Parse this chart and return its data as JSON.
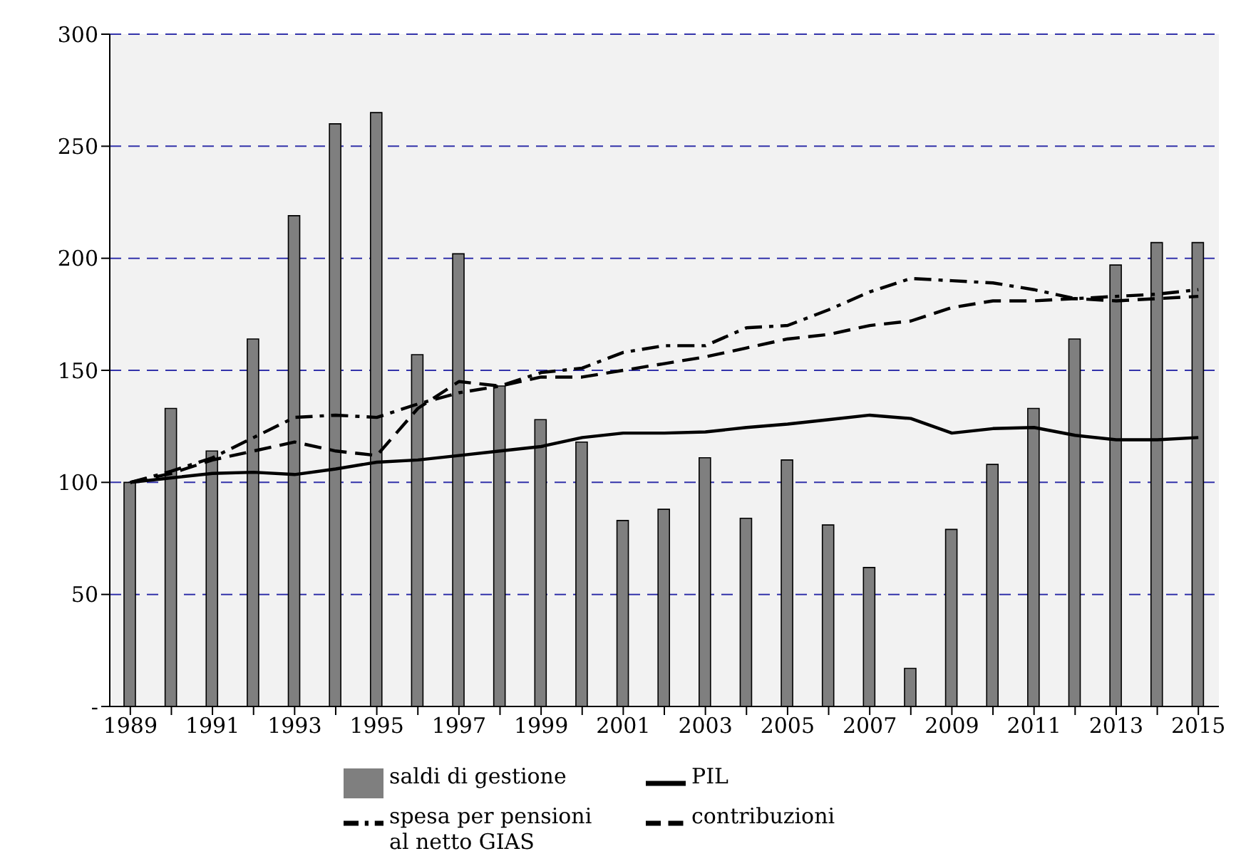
{
  "chart_data": {
    "type": "bar",
    "categories": [
      "1989",
      null,
      "1991",
      null,
      "1993",
      null,
      "1995",
      null,
      "1997",
      null,
      "1999",
      null,
      "2001",
      null,
      "2003",
      null,
      "2005",
      null,
      "2007",
      null,
      "2009",
      null,
      "2011",
      null,
      "2013",
      null,
      "2015"
    ],
    "series": [
      {
        "name": "saldi di gestione",
        "color": "#7f7f7f",
        "values": [
          100,
          133,
          114,
          164,
          219,
          260,
          265,
          157,
          202,
          143,
          128,
          118,
          83,
          88,
          111,
          84,
          110,
          81,
          62,
          17,
          79,
          108,
          133,
          164,
          197,
          207,
          207
        ]
      },
      {
        "name": "PIL",
        "type": "line",
        "color": "#000000",
        "line_style": "solid",
        "values": [
          100,
          102,
          104,
          104.5,
          103.5,
          106,
          109,
          110,
          112,
          114,
          116,
          120,
          122,
          122,
          122.5,
          124.5,
          126,
          128,
          130,
          128.5,
          122,
          124,
          124.5,
          121,
          119,
          119,
          120
        ]
      },
      {
        "name": "spesa per pensioni\nal netto GIAS",
        "type": "line",
        "color": "#000000",
        "line_style": "dashdot",
        "values": [
          100,
          105,
          111,
          120,
          129,
          130,
          129,
          135,
          140,
          143,
          149,
          151,
          158,
          161,
          161,
          169,
          170,
          177,
          185,
          191,
          190,
          189,
          186,
          182,
          183,
          184,
          186
        ]
      },
      {
        "name": "contribuzioni",
        "type": "line",
        "color": "#000000",
        "line_style": "dashed",
        "values": [
          100,
          104,
          110,
          114,
          118,
          114,
          112,
          133,
          145,
          143,
          147,
          147,
          150,
          153,
          156,
          160,
          164,
          166,
          170,
          172,
          178,
          181,
          181,
          182,
          181,
          182,
          183
        ]
      }
    ],
    "ylim": [
      0,
      300
    ],
    "yticks": [
      {
        "value": 0,
        "label": "-"
      },
      50,
      100,
      150,
      200,
      250,
      300
    ],
    "grid": "y",
    "legend": "bottom",
    "marker": "none"
  }
}
